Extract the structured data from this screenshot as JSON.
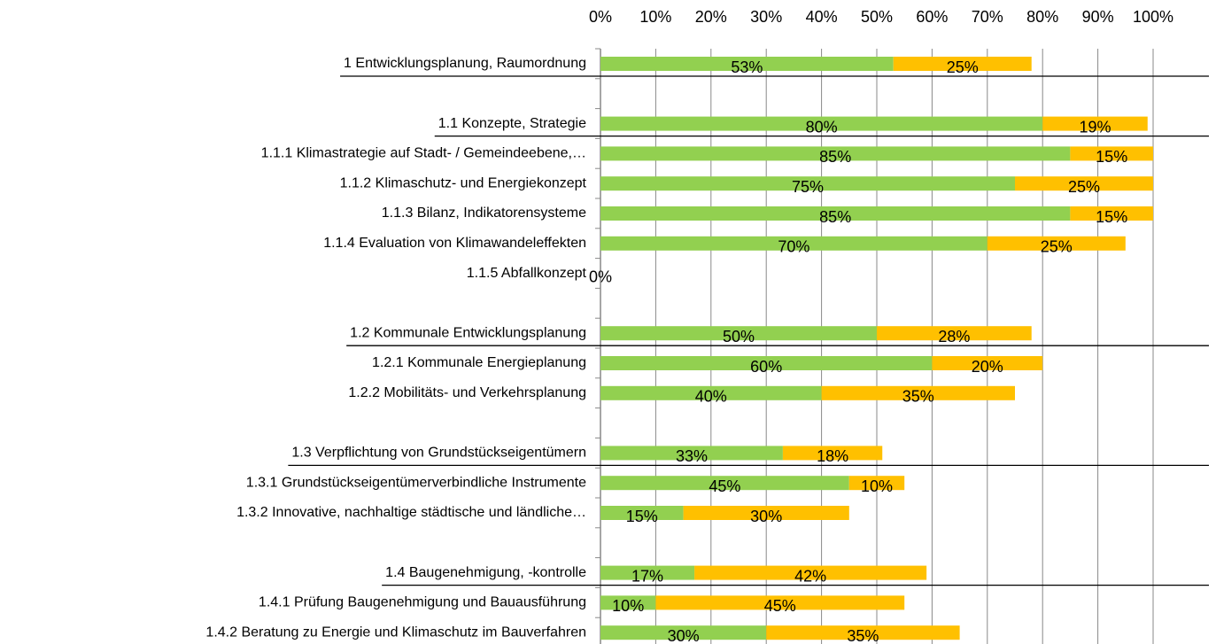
{
  "chart_data": {
    "type": "stacked-bar-horizontal",
    "categories": [
      "1 Entwicklungsplanung, Raumordnung",
      null,
      "1.1 Konzepte, Strategie",
      "1.1.1 Klimastrategie auf Stadt- / Gemeindeebene,…",
      "1.1.2 Klimaschutz- und Energiekonzept",
      "1.1.3 Bilanz, Indikatorensysteme",
      "1.1.4 Evaluation von Klimawandeleffekten",
      "1.1.5 Abfallkonzept",
      null,
      "1.2 Kommunale Entwicklungsplanung",
      "1.2.1 Kommunale Energieplanung",
      "1.2.2 Mobilitäts- und Verkehrsplanung",
      null,
      "1.3 Verpflichtung von Grundstückseigentümern",
      "1.3.1 Grundstückseigentümerverbindliche Instrumente",
      "1.3.2 Innovative, nachhaltige städtische und ländliche…",
      null,
      "1.4 Baugenehmigung, -kontrolle",
      "1.4.1 Prüfung Baugenehmigung und Bauausführung",
      "1.4.2 Beratung zu Energie und Klimaschutz im Bauverfahren"
    ],
    "series": [
      {
        "color": "#92d050",
        "values": [
          53,
          null,
          80,
          85,
          75,
          85,
          70,
          0,
          null,
          50,
          60,
          40,
          null,
          33,
          45,
          15,
          null,
          17,
          10,
          30
        ],
        "value_labels": [
          "53%",
          null,
          "80%",
          "85%",
          "75%",
          "85%",
          "70%",
          "0%",
          null,
          "50%",
          "60%",
          "40%",
          null,
          "33%",
          "45%",
          "15%",
          null,
          "17%",
          "10%",
          "30%"
        ]
      },
      {
        "color": "#ffc000",
        "values": [
          25,
          null,
          19,
          15,
          25,
          15,
          25,
          null,
          null,
          28,
          20,
          35,
          null,
          18,
          10,
          30,
          null,
          42,
          45,
          35
        ],
        "value_labels": [
          "25%",
          null,
          "19%",
          "15%",
          "25%",
          "15%",
          "25%",
          null,
          null,
          "28%",
          "20%",
          "35%",
          null,
          "18%",
          "10%",
          "30%",
          null,
          "42%",
          "45%",
          "35%"
        ]
      }
    ],
    "xlim": [
      0,
      100
    ],
    "xticks": [
      {
        "value": 0,
        "label": "0%"
      },
      {
        "value": 10,
        "label": "10%"
      },
      {
        "value": 20,
        "label": "20%"
      },
      {
        "value": 30,
        "label": "30%"
      },
      {
        "value": 40,
        "label": "40%"
      },
      {
        "value": 50,
        "label": "50%"
      },
      {
        "value": 60,
        "label": "60%"
      },
      {
        "value": 70,
        "label": "70%"
      },
      {
        "value": 80,
        "label": "80%"
      },
      {
        "value": 90,
        "label": "90%"
      },
      {
        "value": 100,
        "label": "100%"
      }
    ],
    "grid": true
  }
}
